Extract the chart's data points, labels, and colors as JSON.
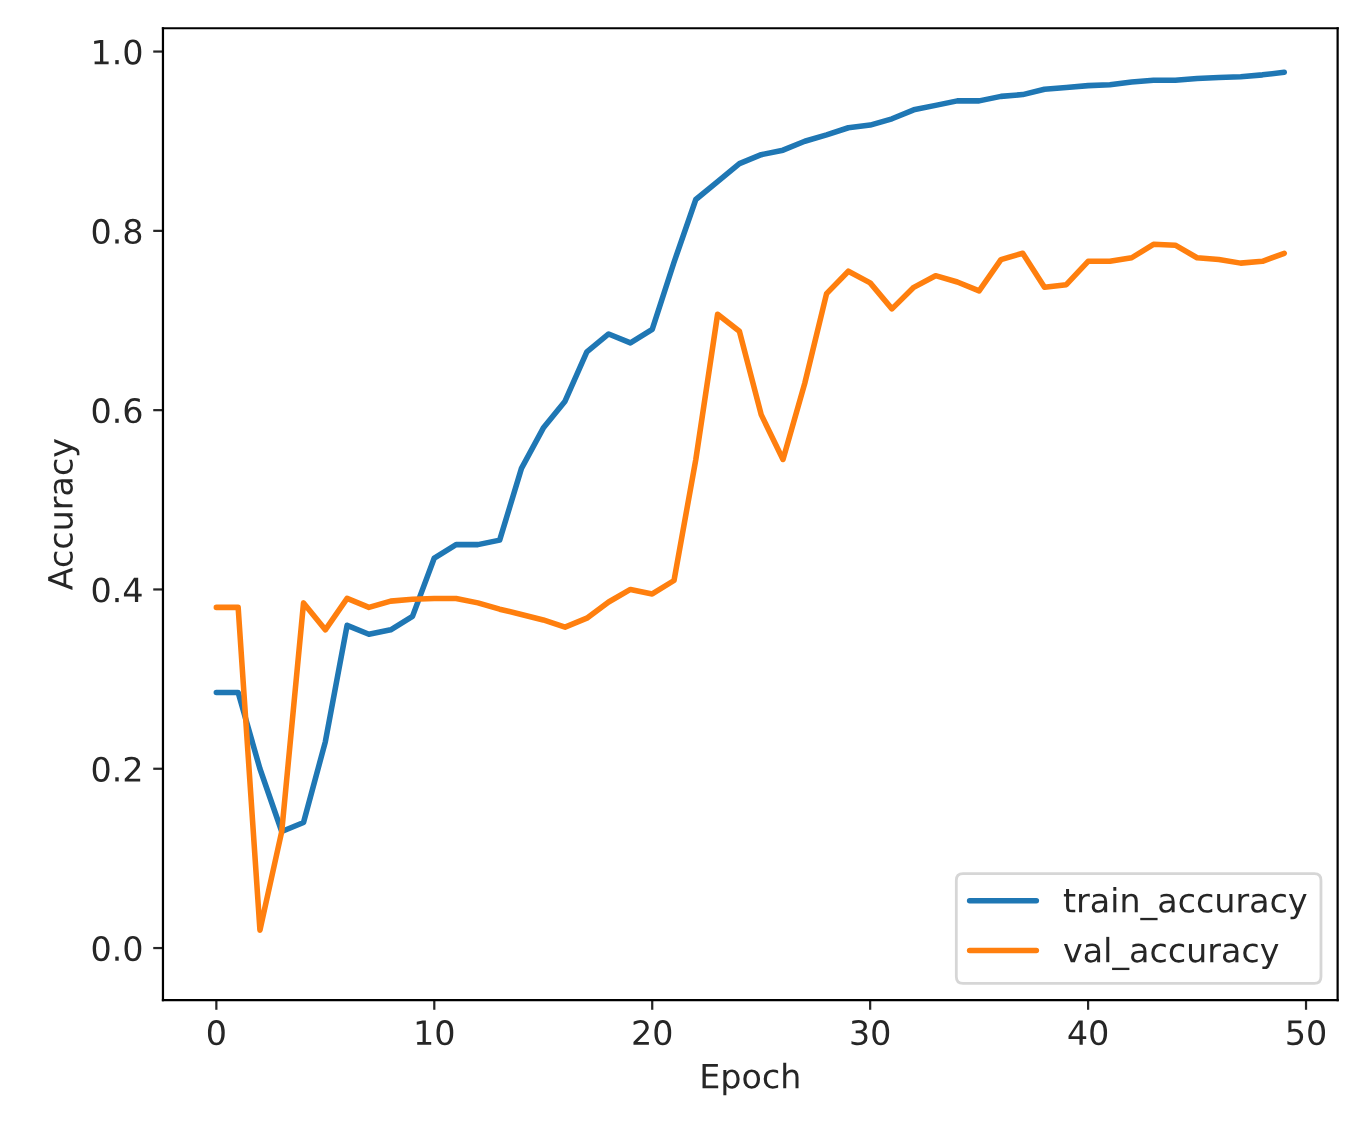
{
  "chart_data": {
    "type": "line",
    "xlabel": "Epoch",
    "ylabel": "Accuracy",
    "x": [
      0,
      1,
      2,
      3,
      4,
      5,
      6,
      7,
      8,
      9,
      10,
      11,
      12,
      13,
      14,
      15,
      16,
      17,
      18,
      19,
      20,
      21,
      22,
      23,
      24,
      25,
      26,
      27,
      28,
      29,
      30,
      31,
      32,
      33,
      34,
      35,
      36,
      37,
      38,
      39,
      40,
      41,
      42,
      43,
      44,
      45,
      46,
      47,
      48,
      49
    ],
    "series": [
      {
        "name": "train_accuracy",
        "color": "#1f77b4",
        "values": [
          0.285,
          0.285,
          0.2,
          0.13,
          0.14,
          0.23,
          0.36,
          0.35,
          0.355,
          0.37,
          0.435,
          0.45,
          0.45,
          0.455,
          0.535,
          0.58,
          0.61,
          0.665,
          0.685,
          0.675,
          0.69,
          0.765,
          0.835,
          0.855,
          0.875,
          0.885,
          0.89,
          0.9,
          0.907,
          0.915,
          0.918,
          0.925,
          0.935,
          0.94,
          0.945,
          0.945,
          0.95,
          0.952,
          0.958,
          0.96,
          0.962,
          0.963,
          0.966,
          0.968,
          0.968,
          0.97,
          0.971,
          0.972,
          0.974,
          0.977
        ]
      },
      {
        "name": "val_accuracy",
        "color": "#ff7f0e",
        "values": [
          0.38,
          0.38,
          0.02,
          0.13,
          0.385,
          0.355,
          0.39,
          0.38,
          0.387,
          0.389,
          0.39,
          0.39,
          0.385,
          0.378,
          0.372,
          0.366,
          0.358,
          0.368,
          0.386,
          0.4,
          0.395,
          0.41,
          0.545,
          0.707,
          0.688,
          0.595,
          0.545,
          0.63,
          0.73,
          0.755,
          0.742,
          0.713,
          0.737,
          0.75,
          0.743,
          0.733,
          0.768,
          0.775,
          0.737,
          0.74,
          0.766,
          0.766,
          0.77,
          0.785,
          0.784,
          0.77,
          0.768,
          0.764,
          0.766,
          0.775
        ]
      }
    ],
    "xlim": [
      -2.45,
      51.45
    ],
    "ylim": [
      -0.058,
      1.026
    ],
    "xticks": [
      0,
      10,
      20,
      30,
      40,
      50
    ],
    "yticks": [
      {
        "value": 0,
        "label": "0.0"
      },
      0.2,
      0.4,
      0.6,
      0.8,
      {
        "value": 1,
        "label": "1.0"
      }
    ],
    "grid": false,
    "legend": "bottom right",
    "marker": "none",
    "line_style": "solid"
  }
}
